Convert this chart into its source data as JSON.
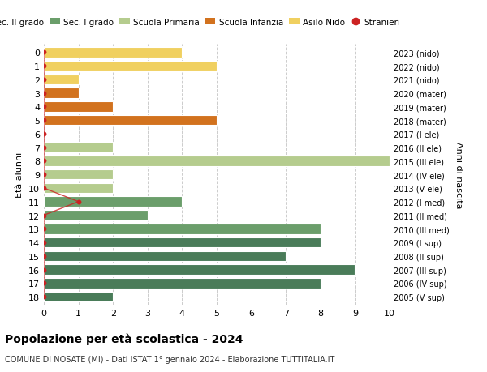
{
  "title": "Popolazione per età scolastica - 2024",
  "subtitle": "COMUNE DI NOSATE (MI) - Dati ISTAT 1° gennaio 2024 - Elaborazione TUTTITALIA.IT",
  "ylabel_left": "Età alunni",
  "ylabel_right": "Anni di nascita",
  "xlim": [
    0,
    10
  ],
  "xticks": [
    0,
    1,
    2,
    3,
    4,
    5,
    6,
    7,
    8,
    9,
    10
  ],
  "ages": [
    18,
    17,
    16,
    15,
    14,
    13,
    12,
    11,
    10,
    9,
    8,
    7,
    6,
    5,
    4,
    3,
    2,
    1,
    0
  ],
  "years_labels": [
    "2005 (V sup)",
    "2006 (IV sup)",
    "2007 (III sup)",
    "2008 (II sup)",
    "2009 (I sup)",
    "2010 (III med)",
    "2011 (II med)",
    "2012 (I med)",
    "2013 (V ele)",
    "2014 (IV ele)",
    "2015 (III ele)",
    "2016 (II ele)",
    "2017 (I ele)",
    "2018 (mater)",
    "2019 (mater)",
    "2020 (mater)",
    "2021 (nido)",
    "2022 (nido)",
    "2023 (nido)"
  ],
  "bar_values": [
    2,
    8,
    9,
    7,
    8,
    8,
    3,
    4,
    2,
    2,
    10,
    2,
    0,
    5,
    2,
    1,
    1,
    5,
    4
  ],
  "bar_colors": [
    "#4a7c59",
    "#4a7c59",
    "#4a7c59",
    "#4a7c59",
    "#4a7c59",
    "#6b9e6b",
    "#6b9e6b",
    "#6b9e6b",
    "#b5cc8e",
    "#b5cc8e",
    "#b5cc8e",
    "#b5cc8e",
    "#b5cc8e",
    "#d2721e",
    "#d2721e",
    "#d2721e",
    "#f0d060",
    "#f0d060",
    "#f0d060"
  ],
  "stranieri_values": [
    0,
    0,
    0,
    0,
    0,
    0,
    0,
    1,
    0,
    0,
    0,
    0,
    0,
    0,
    0,
    0,
    0,
    0,
    0
  ],
  "stranieri_color": "#cc2222",
  "legend_labels": [
    "Sec. II grado",
    "Sec. I grado",
    "Scuola Primaria",
    "Scuola Infanzia",
    "Asilo Nido",
    "Stranieri"
  ],
  "legend_colors": [
    "#4a7c59",
    "#6b9e6b",
    "#b5cc8e",
    "#d2721e",
    "#f0d060",
    "#cc2222"
  ],
  "bg_color": "#ffffff",
  "grid_color": "#cccccc",
  "bar_height": 0.75
}
